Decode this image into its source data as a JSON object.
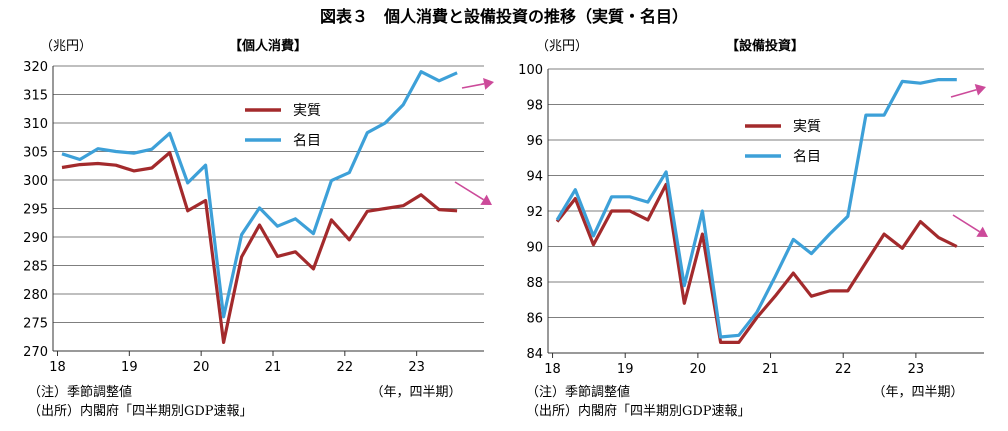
{
  "title": "図表３　個人消費と設備投資の推移（実質・名目）",
  "notes": [
    "（注）季節調整値",
    "（出所）内閣府「四半期別GDP速報」"
  ],
  "x_unit": "（年，四半期）",
  "colors": {
    "real": "#a32a2c",
    "nominal": "#3da0d8",
    "arrow": "#cc4a9a",
    "grid": "#555555"
  },
  "chart_data": [
    {
      "type": "line",
      "subtitle": "【個人消費】",
      "ylabel": "（兆円）",
      "ylim": [
        270,
        320
      ],
      "yticks": [
        270,
        275,
        280,
        285,
        290,
        295,
        300,
        305,
        310,
        315,
        320
      ],
      "year_labels": [
        "18",
        "19",
        "20",
        "21",
        "22",
        "23"
      ],
      "x": [
        "2018Q1",
        "2018Q2",
        "2018Q3",
        "2018Q4",
        "2019Q1",
        "2019Q2",
        "2019Q3",
        "2019Q4",
        "2020Q1",
        "2020Q2",
        "2020Q3",
        "2020Q4",
        "2021Q1",
        "2021Q2",
        "2021Q3",
        "2021Q4",
        "2022Q1",
        "2022Q2",
        "2022Q3",
        "2022Q4",
        "2023Q1",
        "2023Q2",
        "2023Q3"
      ],
      "legend": [
        "実質",
        "名目"
      ],
      "series": [
        {
          "name": "実質",
          "values": [
            302.2,
            302.7,
            302.9,
            302.6,
            301.6,
            302.1,
            304.8,
            294.6,
            296.4,
            271.5,
            286.5,
            292.1,
            286.6,
            287.4,
            284.4,
            293.0,
            289.5,
            294.5,
            295.0,
            295.5,
            297.4,
            294.8,
            294.6
          ]
        },
        {
          "name": "名目",
          "values": [
            304.6,
            303.6,
            305.5,
            305.0,
            304.7,
            305.4,
            308.2,
            299.5,
            302.6,
            276.0,
            290.4,
            295.1,
            291.9,
            293.2,
            290.6,
            299.9,
            301.3,
            308.3,
            310.0,
            313.2,
            319.0,
            317.4,
            318.8
          ]
        }
      ]
    },
    {
      "type": "line",
      "subtitle": "【設備投資】",
      "ylabel": "（兆円）",
      "ylim": [
        84,
        100
      ],
      "yticks": [
        84,
        86,
        88,
        90,
        92,
        94,
        96,
        98,
        100
      ],
      "year_labels": [
        "18",
        "19",
        "20",
        "21",
        "22",
        "23"
      ],
      "x": [
        "2018Q1",
        "2018Q2",
        "2018Q3",
        "2018Q4",
        "2019Q1",
        "2019Q2",
        "2019Q3",
        "2019Q4",
        "2020Q1",
        "2020Q2",
        "2020Q3",
        "2020Q4",
        "2021Q1",
        "2021Q2",
        "2021Q3",
        "2021Q4",
        "2022Q1",
        "2022Q2",
        "2022Q3",
        "2022Q4",
        "2023Q1",
        "2023Q2",
        "2023Q3"
      ],
      "legend": [
        "実質",
        "名目"
      ],
      "series": [
        {
          "name": "実質",
          "values": [
            91.4,
            92.7,
            90.1,
            92.0,
            92.0,
            91.5,
            93.5,
            86.8,
            90.7,
            84.6,
            84.6,
            86.0,
            87.2,
            88.5,
            87.2,
            87.5,
            87.5,
            89.1,
            90.7,
            89.9,
            91.4,
            90.5,
            90.0
          ]
        },
        {
          "name": "名目",
          "values": [
            91.5,
            93.2,
            90.6,
            92.8,
            92.8,
            92.5,
            94.2,
            87.8,
            92.0,
            84.9,
            85.0,
            86.3,
            88.3,
            90.4,
            89.6,
            90.7,
            91.7,
            97.4,
            97.4,
            99.3,
            99.2,
            99.4,
            99.4
          ]
        }
      ]
    }
  ]
}
